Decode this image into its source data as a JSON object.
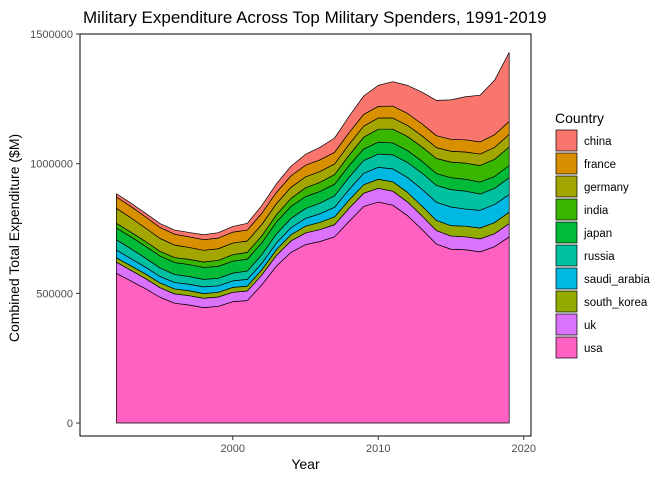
{
  "chart_data": {
    "type": "area",
    "stacked": true,
    "title": "Military Expenditure Across Top Military Spenders, 1991-2019",
    "xlabel": "Year",
    "ylabel": "Combined Total Expenditure ($M)",
    "xlim": [
      1989.5,
      2020.5
    ],
    "ylim": [
      -50000,
      1500000
    ],
    "x_ticks": [
      2000,
      2010,
      2020
    ],
    "y_ticks": [
      0,
      500000,
      1000000,
      1500000
    ],
    "y_tick_labels": [
      "0",
      "500000",
      "1000000",
      "1500000"
    ],
    "grid": false,
    "legend_title": "Country",
    "legend_position": "right",
    "x": [
      1992,
      1993,
      1994,
      1995,
      1996,
      1997,
      1998,
      1999,
      2000,
      2001,
      2002,
      2003,
      2004,
      2005,
      2006,
      2007,
      2008,
      2009,
      2010,
      2011,
      2012,
      2013,
      2014,
      2015,
      2016,
      2017,
      2018,
      2019
    ],
    "series": [
      {
        "name": "usa",
        "color": "#FF61C3",
        "values": [
          577000,
          548000,
          518000,
          485000,
          462000,
          455000,
          445000,
          450000,
          468000,
          472000,
          533000,
          605000,
          658000,
          688000,
          700000,
          718000,
          778000,
          835000,
          852000,
          840000,
          800000,
          747000,
          690000,
          670000,
          668000,
          660000,
          680000,
          718000
        ]
      },
      {
        "name": "uk",
        "color": "#DB72FB",
        "values": [
          43000,
          41000,
          39000,
          37000,
          36000,
          36000,
          36000,
          36000,
          36000,
          37000,
          38000,
          41000,
          44000,
          45000,
          46000,
          47000,
          50000,
          51000,
          53000,
          54000,
          53000,
          52000,
          52000,
          51000,
          50000,
          50000,
          50000,
          51000
        ]
      },
      {
        "name": "south_korea",
        "color": "#93AA00",
        "values": [
          17000,
          17000,
          18000,
          18000,
          19000,
          19000,
          18000,
          18000,
          19000,
          19000,
          20000,
          22000,
          24000,
          26000,
          28000,
          30000,
          32000,
          33000,
          35000,
          36000,
          37000,
          38000,
          39000,
          40000,
          41000,
          42000,
          43000,
          44000
        ]
      },
      {
        "name": "saudi_arabia",
        "color": "#00B9E3",
        "values": [
          30000,
          28000,
          26000,
          25000,
          25000,
          25000,
          26000,
          25000,
          25000,
          26000,
          25000,
          26000,
          27000,
          30000,
          33000,
          37000,
          41000,
          44000,
          46000,
          50000,
          57000,
          65000,
          70000,
          72000,
          66000,
          68000,
          70000,
          68000
        ]
      },
      {
        "name": "russia",
        "color": "#00C19F",
        "values": [
          40000,
          38000,
          35000,
          33000,
          31000,
          30000,
          29000,
          29000,
          30000,
          32000,
          33000,
          35000,
          36000,
          38000,
          41000,
          44000,
          47000,
          49000,
          51000,
          54000,
          58000,
          62000,
          65000,
          67000,
          69000,
          63000,
          62000,
          65000
        ]
      },
      {
        "name": "japan",
        "color": "#00BA38",
        "values": [
          45000,
          46000,
          46000,
          46000,
          46000,
          46000,
          46000,
          46000,
          46000,
          46000,
          46000,
          46000,
          46000,
          46000,
          45000,
          45000,
          45000,
          45000,
          46000,
          46000,
          46000,
          46000,
          46000,
          46000,
          46000,
          46000,
          46000,
          47000
        ]
      },
      {
        "name": "india",
        "color": "#39B600",
        "values": [
          18000,
          18000,
          18000,
          18000,
          19000,
          20000,
          21000,
          23000,
          25000,
          26000,
          27000,
          28000,
          31000,
          34000,
          35000,
          37000,
          40000,
          45000,
          50000,
          53000,
          54000,
          55000,
          58000,
          60000,
          62000,
          64000,
          66000,
          71000
        ]
      },
      {
        "name": "germany",
        "color": "#A3A500",
        "values": [
          58000,
          55000,
          52000,
          50000,
          48000,
          46000,
          45000,
          45000,
          45000,
          44000,
          44000,
          43000,
          43000,
          42000,
          42000,
          41000,
          42000,
          43000,
          43000,
          43000,
          43000,
          43000,
          42000,
          42000,
          43000,
          44000,
          46000,
          49000
        ]
      },
      {
        "name": "france",
        "color": "#D89000",
        "values": [
          44000,
          44000,
          43000,
          42000,
          42000,
          41000,
          41000,
          41000,
          42000,
          42000,
          43000,
          43000,
          44000,
          45000,
          45000,
          45000,
          45000,
          45000,
          45000,
          46000,
          46000,
          46000,
          46000,
          46000,
          47000,
          47000,
          49000,
          50000
        ]
      },
      {
        "name": "china",
        "color": "#F8766D",
        "values": [
          12000,
          13000,
          14000,
          15000,
          16000,
          17000,
          19000,
          21000,
          22000,
          26000,
          30000,
          33000,
          37000,
          42000,
          48000,
          55000,
          63000,
          71000,
          81000,
          94000,
          108000,
          122000,
          136000,
          152000,
          166000,
          180000,
          210000,
          266000
        ]
      }
    ],
    "legend_order": [
      "china",
      "france",
      "germany",
      "india",
      "japan",
      "russia",
      "saudi_arabia",
      "south_korea",
      "uk",
      "usa"
    ]
  }
}
